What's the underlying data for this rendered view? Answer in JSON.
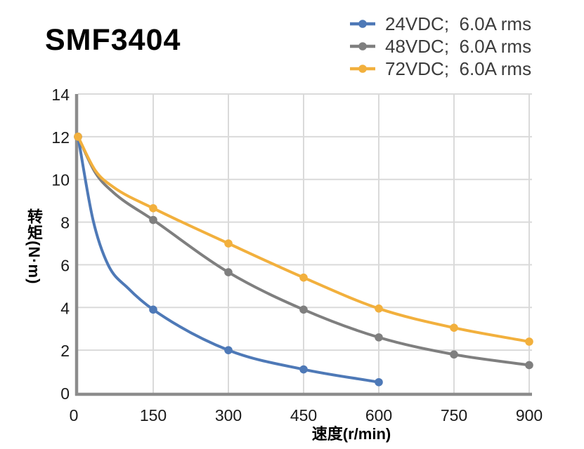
{
  "chart_data": {
    "type": "line",
    "title": "SMF3404",
    "xlabel": "速度(r/min)",
    "ylabel": "转矩(N·m)",
    "xlim": [
      0,
      900
    ],
    "ylim": [
      0,
      14
    ],
    "xticks": [
      0,
      150,
      300,
      450,
      600,
      750,
      900
    ],
    "yticks": [
      0,
      2,
      4,
      6,
      8,
      10,
      12,
      14
    ],
    "grid": true,
    "legend_position": "top-right",
    "line_style": "smooth",
    "colors": {
      "grid": "#dadada",
      "axis": "#8c8c8c",
      "tick_text": "#1a1a1a",
      "legend_text": "#3c3c3c"
    },
    "series": [
      {
        "name": "24VDC;  6.0A rms",
        "color": "#4E79B7",
        "x": [
          0,
          150,
          300,
          450,
          600
        ],
        "y": [
          12,
          3.9,
          2.0,
          1.1,
          0.5
        ],
        "curve_shape_points": {
          "x": [
            30,
            60,
            100
          ],
          "y": [
            8.1,
            6.0,
            4.9
          ]
        }
      },
      {
        "name": "48VDC;  6.0A rms",
        "color": "#7F7F7F",
        "x": [
          0,
          150,
          300,
          450,
          600,
          750,
          900
        ],
        "y": [
          12,
          8.1,
          5.65,
          3.9,
          2.6,
          1.8,
          1.3
        ],
        "curve_shape_points": {
          "x": [
            35,
            70
          ],
          "y": [
            10.3,
            9.4
          ]
        }
      },
      {
        "name": "72VDC;  6.0A rms",
        "color": "#F2B03D",
        "x": [
          0,
          150,
          300,
          450,
          600,
          750,
          900
        ],
        "y": [
          12,
          8.65,
          7.0,
          5.4,
          3.95,
          3.05,
          2.4
        ],
        "curve_shape_points": {
          "x": [
            35,
            70
          ],
          "y": [
            10.4,
            9.65
          ]
        }
      }
    ]
  }
}
